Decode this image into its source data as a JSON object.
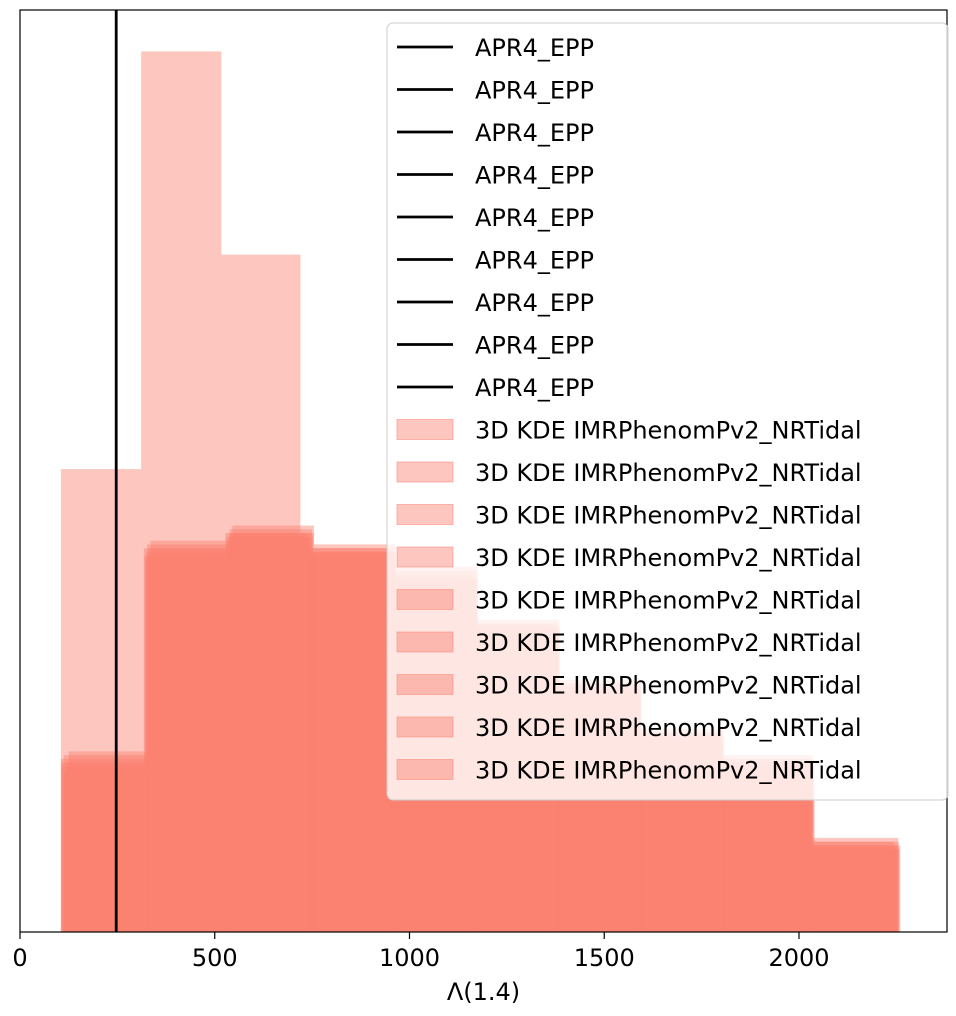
{
  "chart_data": {
    "type": "histogram",
    "xlabel": "Λ(1.4)",
    "ylabel": "",
    "xlim": [
      0,
      2380
    ],
    "ylim": [
      0,
      0.00245
    ],
    "xticks": [
      0,
      500,
      1000,
      1500,
      2000
    ],
    "xtick_labels": [
      "0",
      "500",
      "1000",
      "1500",
      "2000"
    ],
    "yticks_shown": false,
    "reference_line": {
      "name": "APR4_EPP",
      "x": 247,
      "color": "#000000"
    },
    "histogram_color": "#fa8072",
    "series": [
      {
        "name": "3D KDE IMRPhenomPv2_NRTidal",
        "opacity": 0.45,
        "bins": [
          105,
          311,
          517,
          720,
          1000
        ],
        "values": [
          0.00123,
          0.00234,
          0.0018,
          0,
          0
        ]
      },
      {
        "name": "3D KDE IMRPhenomPv2_NRTidal",
        "opacity": 0.45,
        "bins": [
          105,
          318,
          527,
          738,
          950,
          1160,
          1368,
          1578,
          1790,
          2025,
          2245
        ],
        "values": [
          0.00045,
          0.00102,
          0.00106,
          0.00102,
          0.00095,
          0.00082,
          0.00066,
          0.00053,
          0.00046,
          0.00024,
          5e-05
        ]
      },
      {
        "name": "3D KDE IMRPhenomPv2_NRTidal",
        "opacity": 0.45,
        "bins": [
          110,
          320,
          530,
          742,
          955,
          1165,
          1375,
          1585,
          1797,
          2030,
          2250
        ],
        "values": [
          0.00042,
          0.001,
          0.00105,
          0.00101,
          0.00093,
          0.0008,
          0.00064,
          0.00051,
          0.00044,
          0.00023,
          4e-05
        ]
      },
      {
        "name": "3D KDE IMRPhenomPv2_NRTidal",
        "opacity": 0.45,
        "bins": [
          125,
          335,
          545,
          755,
          965,
          1175,
          1385,
          1595,
          1805,
          2035,
          2255
        ],
        "values": [
          0.00048,
          0.00104,
          0.00108,
          0.00103,
          0.00097,
          0.00083,
          0.00067,
          0.00054,
          0.00047,
          0.00025,
          6e-05
        ]
      },
      {
        "name": "3D KDE IMRPhenomPv2_NRTidal",
        "opacity": 0.45,
        "bins": [
          105,
          322,
          534,
          745,
          958,
          1168,
          1378,
          1588,
          1800,
          2032,
          2252
        ],
        "values": [
          0.00046,
          0.00099,
          0.00104,
          0.001,
          0.00092,
          0.00079,
          0.00063,
          0.0005,
          0.00043,
          0.00022,
          4e-05
        ]
      },
      {
        "name": "3D KDE IMRPhenomPv2_NRTidal",
        "opacity": 0.45,
        "bins": [
          108,
          324,
          536,
          748,
          960,
          1170,
          1380,
          1590,
          1802,
          2034,
          2254
        ],
        "values": [
          0.00044,
          0.00101,
          0.00106,
          0.00101,
          0.00094,
          0.00081,
          0.00065,
          0.00052,
          0.00045,
          0.00023,
          5e-05
        ]
      },
      {
        "name": "3D KDE IMRPhenomPv2_NRTidal",
        "opacity": 0.45,
        "bins": [
          112,
          326,
          538,
          750,
          962,
          1172,
          1382,
          1592,
          1804,
          2036,
          2256
        ],
        "values": [
          0.00047,
          0.00103,
          0.00107,
          0.00102,
          0.00096,
          0.00082,
          0.00066,
          0.00053,
          0.00046,
          0.00024,
          5e-05
        ]
      },
      {
        "name": "3D KDE IMRPhenomPv2_NRTidal",
        "opacity": 0.45,
        "bins": [
          115,
          328,
          540,
          752,
          964,
          1174,
          1384,
          1594,
          1806,
          2038,
          2258
        ],
        "values": [
          0.00043,
          0.001,
          0.00105,
          0.001,
          0.00093,
          0.0008,
          0.00064,
          0.00051,
          0.00044,
          0.00022,
          4e-05
        ]
      },
      {
        "name": "3D KDE IMRPhenomPv2_NRTidal",
        "opacity": 0.45,
        "bins": [
          118,
          330,
          542,
          754,
          966,
          1176,
          1386,
          1596,
          1808,
          2040,
          2260
        ],
        "values": [
          0.00045,
          0.00102,
          0.00106,
          0.00101,
          0.00094,
          0.00081,
          0.00065,
          0.00052,
          0.00045,
          0.00023,
          5e-05
        ]
      }
    ],
    "legend": {
      "placement": "top-right",
      "entries": [
        {
          "label": "APR4_EPP",
          "kind": "line"
        },
        {
          "label": "APR4_EPP",
          "kind": "line"
        },
        {
          "label": "APR4_EPP",
          "kind": "line"
        },
        {
          "label": "APR4_EPP",
          "kind": "line"
        },
        {
          "label": "APR4_EPP",
          "kind": "line"
        },
        {
          "label": "APR4_EPP",
          "kind": "line"
        },
        {
          "label": "APR4_EPP",
          "kind": "line"
        },
        {
          "label": "APR4_EPP",
          "kind": "line"
        },
        {
          "label": "APR4_EPP",
          "kind": "line"
        },
        {
          "label": "3D KDE IMRPhenomPv2_NRTidal",
          "kind": "patch"
        },
        {
          "label": "3D KDE IMRPhenomPv2_NRTidal",
          "kind": "patch"
        },
        {
          "label": "3D KDE IMRPhenomPv2_NRTidal",
          "kind": "patch"
        },
        {
          "label": "3D KDE IMRPhenomPv2_NRTidal",
          "kind": "patch"
        },
        {
          "label": "3D KDE IMRPhenomPv2_NRTidal",
          "kind": "patch"
        },
        {
          "label": "3D KDE IMRPhenomPv2_NRTidal",
          "kind": "patch"
        },
        {
          "label": "3D KDE IMRPhenomPv2_NRTidal",
          "kind": "patch"
        },
        {
          "label": "3D KDE IMRPhenomPv2_NRTidal",
          "kind": "patch"
        },
        {
          "label": "3D KDE IMRPhenomPv2_NRTidal",
          "kind": "patch"
        }
      ]
    }
  }
}
